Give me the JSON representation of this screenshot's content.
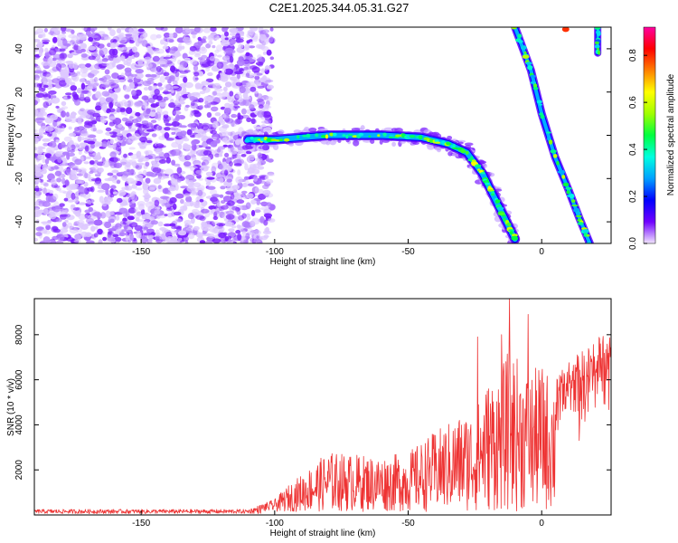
{
  "title": "C2E1.2025.344.05.31.G27",
  "chart_data": [
    {
      "type": "heatmap",
      "xlabel": "Height of straight line (km)",
      "ylabel": "Frequency (Hz)",
      "xlim": [
        -190,
        26
      ],
      "ylim": [
        -50,
        50
      ],
      "xticks": [
        "-150",
        "-100",
        "-50",
        "0"
      ],
      "yticks": [
        "-40",
        "-20",
        "0",
        "20",
        "40"
      ],
      "colorbar": {
        "label": "Normalized spectral amplitude",
        "range": [
          0,
          0.92
        ],
        "ticks": [
          "0.0",
          "0.2",
          "0.4",
          "0.6",
          "0.8"
        ],
        "colors": [
          "#f2e6ff",
          "#7000ff",
          "#0000ff",
          "#00a0ff",
          "#00ffe0",
          "#00ff40",
          "#a0ff00",
          "#ffff00",
          "#ff8000",
          "#ff0000",
          "#ff00a0"
        ]
      },
      "noise_region_x": [
        -190,
        -101
      ],
      "main_trace": [
        [
          -110,
          -2
        ],
        [
          -100,
          -2
        ],
        [
          -80,
          0
        ],
        [
          -60,
          0
        ],
        [
          -45,
          -1
        ],
        [
          -35,
          -4
        ],
        [
          -28,
          -8
        ],
        [
          -22,
          -18
        ],
        [
          -18,
          -28
        ],
        [
          -14,
          -38
        ],
        [
          -10,
          -48
        ]
      ],
      "steep_trace": [
        [
          -10,
          50
        ],
        [
          -4,
          30
        ],
        [
          0,
          10
        ],
        [
          5,
          -10
        ],
        [
          10,
          -25
        ],
        [
          14,
          -38
        ],
        [
          18,
          -50
        ]
      ],
      "right_edge_trace": [
        [
          21,
          50
        ],
        [
          21,
          38
        ]
      ],
      "grid": false
    },
    {
      "type": "line",
      "xlabel": "Height of straight line (km)",
      "ylabel": "SNR (10 * v/v)",
      "xlim": [
        -190,
        26
      ],
      "ylim": [
        0,
        9600
      ],
      "xticks": [
        "-150",
        "-100",
        "-50",
        "0"
      ],
      "yticks": [
        "2000",
        "4000",
        "6000",
        "8000"
      ],
      "color": "#ee3333",
      "envelope": [
        [
          -190,
          250
        ],
        [
          -110,
          250
        ],
        [
          -100,
          700
        ],
        [
          -95,
          1300
        ],
        [
          -85,
          2300
        ],
        [
          -80,
          2800
        ],
        [
          -60,
          2600
        ],
        [
          -50,
          2800
        ],
        [
          -40,
          3700
        ],
        [
          -30,
          4500
        ],
        [
          -25,
          4700
        ],
        [
          -20,
          6000
        ],
        [
          -15,
          6500
        ],
        [
          -12,
          7500
        ],
        [
          -5,
          6300
        ],
        [
          0,
          6700
        ],
        [
          5,
          6000
        ],
        [
          10,
          6800
        ],
        [
          15,
          7300
        ],
        [
          20,
          7800
        ],
        [
          26,
          8600
        ]
      ],
      "spikes": [
        [
          -12,
          9600
        ],
        [
          -15,
          8000
        ],
        [
          -24,
          7900
        ],
        [
          -5,
          8900
        ],
        [
          14,
          3300
        ],
        [
          12,
          4600
        ],
        [
          -18,
          2700
        ]
      ],
      "grid": false
    }
  ]
}
